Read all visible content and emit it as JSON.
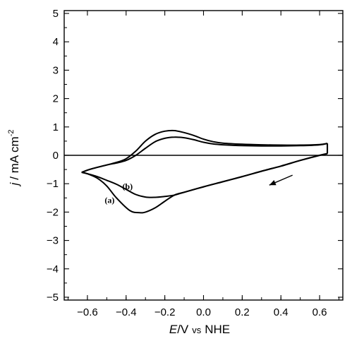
{
  "chart_data": {
    "type": "line",
    "title": "",
    "xlabel_italic": "E",
    "xlabel_unit": "/V",
    "xlabel_ref_small": "vs",
    "xlabel_ref": "NHE",
    "ylabel_italic": "j",
    "ylabel_unit": "/ mA cm",
    "ylabel_sup": "-2",
    "xlim": [
      -0.72,
      0.72
    ],
    "ylim": [
      -5.1,
      5.1
    ],
    "xticks": [
      -0.6,
      -0.4,
      -0.2,
      0.0,
      0.2,
      0.4,
      0.6
    ],
    "xtick_labels": [
      "-0.6",
      "-0.4",
      "-0.2",
      "0.0",
      "0.2",
      "0.4",
      "0.6"
    ],
    "yticks": [
      5,
      4,
      3,
      2,
      1,
      0,
      -1,
      -2,
      -3,
      -4,
      -5
    ],
    "ytick_labels": [
      "5",
      "4",
      "3",
      "2",
      "1",
      "0",
      "-1",
      "-2",
      "-3",
      "-4",
      "-5"
    ],
    "grid": false,
    "zero_line": true,
    "scan_arrow": "leftward along cathodic branch near E = 0.4 V",
    "series": [
      {
        "name": "(a)",
        "anodic": [
          [
            -0.63,
            -0.6
          ],
          [
            -0.58,
            -0.48
          ],
          [
            -0.5,
            -0.34
          ],
          [
            -0.45,
            -0.25
          ],
          [
            -0.4,
            -0.12
          ],
          [
            -0.35,
            0.15
          ],
          [
            -0.3,
            0.5
          ],
          [
            -0.25,
            0.74
          ],
          [
            -0.2,
            0.85
          ],
          [
            -0.15,
            0.87
          ],
          [
            -0.1,
            0.8
          ],
          [
            -0.05,
            0.7
          ],
          [
            0.0,
            0.57
          ],
          [
            0.05,
            0.48
          ],
          [
            0.1,
            0.43
          ],
          [
            0.2,
            0.39
          ],
          [
            0.3,
            0.37
          ],
          [
            0.4,
            0.36
          ],
          [
            0.5,
            0.36
          ],
          [
            0.6,
            0.38
          ],
          [
            0.64,
            0.42
          ]
        ],
        "cathodic": [
          [
            0.64,
            0.06
          ],
          [
            0.6,
            0.0
          ],
          [
            0.5,
            -0.18
          ],
          [
            0.4,
            -0.38
          ],
          [
            0.3,
            -0.56
          ],
          [
            0.2,
            -0.75
          ],
          [
            0.1,
            -0.93
          ],
          [
            0.0,
            -1.11
          ],
          [
            -0.1,
            -1.3
          ],
          [
            -0.15,
            -1.4
          ],
          [
            -0.2,
            -1.62
          ],
          [
            -0.25,
            -1.85
          ],
          [
            -0.3,
            -2.0
          ],
          [
            -0.33,
            -2.02
          ],
          [
            -0.38,
            -1.95
          ],
          [
            -0.45,
            -1.5
          ],
          [
            -0.5,
            -1.08
          ],
          [
            -0.55,
            -0.8
          ],
          [
            -0.6,
            -0.65
          ],
          [
            -0.63,
            -0.6
          ]
        ]
      },
      {
        "name": "(b)",
        "anodic": [
          [
            -0.63,
            -0.6
          ],
          [
            -0.58,
            -0.48
          ],
          [
            -0.5,
            -0.34
          ],
          [
            -0.45,
            -0.27
          ],
          [
            -0.4,
            -0.18
          ],
          [
            -0.35,
            0.0
          ],
          [
            -0.3,
            0.25
          ],
          [
            -0.25,
            0.48
          ],
          [
            -0.2,
            0.6
          ],
          [
            -0.15,
            0.64
          ],
          [
            -0.1,
            0.62
          ],
          [
            -0.05,
            0.55
          ],
          [
            0.0,
            0.46
          ],
          [
            0.05,
            0.4
          ],
          [
            0.1,
            0.37
          ],
          [
            0.2,
            0.34
          ],
          [
            0.3,
            0.33
          ],
          [
            0.4,
            0.33
          ],
          [
            0.5,
            0.34
          ],
          [
            0.6,
            0.37
          ],
          [
            0.64,
            0.42
          ]
        ],
        "cathodic": [
          [
            0.64,
            0.06
          ],
          [
            0.6,
            0.0
          ],
          [
            0.5,
            -0.18
          ],
          [
            0.4,
            -0.38
          ],
          [
            0.3,
            -0.56
          ],
          [
            0.2,
            -0.75
          ],
          [
            0.1,
            -0.93
          ],
          [
            0.0,
            -1.11
          ],
          [
            -0.1,
            -1.3
          ],
          [
            -0.15,
            -1.4
          ],
          [
            -0.2,
            -1.45
          ],
          [
            -0.25,
            -1.48
          ],
          [
            -0.3,
            -1.47
          ],
          [
            -0.35,
            -1.38
          ],
          [
            -0.4,
            -1.2
          ],
          [
            -0.45,
            -1.02
          ],
          [
            -0.5,
            -0.88
          ],
          [
            -0.55,
            -0.75
          ],
          [
            -0.6,
            -0.65
          ],
          [
            -0.63,
            -0.6
          ]
        ]
      }
    ]
  }
}
